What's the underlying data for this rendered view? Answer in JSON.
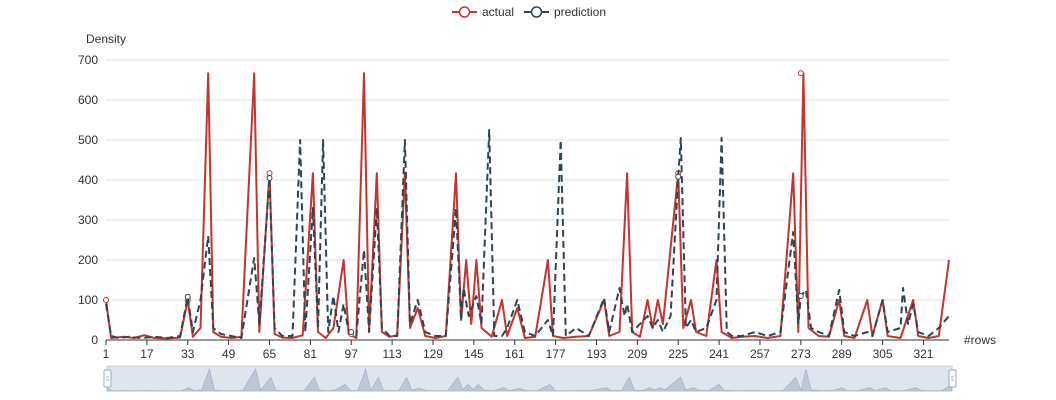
{
  "chart_data": {
    "type": "line",
    "title": "",
    "xlabel": "#rows",
    "ylabel": "Density",
    "ylim": [
      0,
      700
    ],
    "yticks": [
      0,
      100,
      200,
      300,
      400,
      500,
      600,
      700
    ],
    "xlim": [
      1,
      331
    ],
    "xticks": [
      1,
      17,
      33,
      49,
      65,
      81,
      97,
      113,
      129,
      145,
      161,
      177,
      193,
      209,
      225,
      241,
      257,
      273,
      289,
      305,
      321
    ],
    "grid": "horizontal",
    "legend": "top-center",
    "data_zoom": true,
    "series": [
      {
        "name": "actual",
        "color": "#c23531",
        "style": "solid",
        "markers": [
          [
            1,
            100
          ],
          [
            33,
            100
          ],
          [
            65,
            417
          ],
          [
            97,
            15
          ],
          [
            225,
            417
          ],
          [
            273,
            667
          ]
        ],
        "points": [
          [
            1,
            100
          ],
          [
            3,
            5
          ],
          [
            8,
            8
          ],
          [
            12,
            5
          ],
          [
            16,
            12
          ],
          [
            20,
            5
          ],
          [
            25,
            4
          ],
          [
            30,
            6
          ],
          [
            33,
            100
          ],
          [
            35,
            8
          ],
          [
            38,
            30
          ],
          [
            41,
            667
          ],
          [
            43,
            20
          ],
          [
            46,
            8
          ],
          [
            50,
            5
          ],
          [
            54,
            8
          ],
          [
            59,
            667
          ],
          [
            61,
            20
          ],
          [
            65,
            417
          ],
          [
            67,
            15
          ],
          [
            70,
            6
          ],
          [
            74,
            5
          ],
          [
            78,
            12
          ],
          [
            82,
            417
          ],
          [
            84,
            20
          ],
          [
            87,
            5
          ],
          [
            90,
            30
          ],
          [
            94,
            200
          ],
          [
            96,
            15
          ],
          [
            99,
            5
          ],
          [
            102,
            667
          ],
          [
            104,
            20
          ],
          [
            107,
            417
          ],
          [
            109,
            20
          ],
          [
            112,
            8
          ],
          [
            115,
            12
          ],
          [
            118,
            417
          ],
          [
            120,
            30
          ],
          [
            123,
            80
          ],
          [
            126,
            10
          ],
          [
            130,
            5
          ],
          [
            134,
            10
          ],
          [
            138,
            417
          ],
          [
            140,
            50
          ],
          [
            142,
            200
          ],
          [
            144,
            40
          ],
          [
            146,
            200
          ],
          [
            148,
            30
          ],
          [
            152,
            8
          ],
          [
            156,
            100
          ],
          [
            158,
            10
          ],
          [
            162,
            80
          ],
          [
            165,
            5
          ],
          [
            169,
            8
          ],
          [
            174,
            200
          ],
          [
            176,
            10
          ],
          [
            180,
            5
          ],
          [
            185,
            8
          ],
          [
            190,
            10
          ],
          [
            196,
            100
          ],
          [
            198,
            10
          ],
          [
            202,
            20
          ],
          [
            205,
            417
          ],
          [
            207,
            20
          ],
          [
            210,
            8
          ],
          [
            213,
            100
          ],
          [
            215,
            30
          ],
          [
            217,
            100
          ],
          [
            219,
            40
          ],
          [
            225,
            417
          ],
          [
            227,
            30
          ],
          [
            230,
            100
          ],
          [
            232,
            20
          ],
          [
            236,
            10
          ],
          [
            240,
            200
          ],
          [
            242,
            20
          ],
          [
            246,
            5
          ],
          [
            250,
            8
          ],
          [
            255,
            10
          ],
          [
            260,
            5
          ],
          [
            265,
            10
          ],
          [
            270,
            417
          ],
          [
            272,
            20
          ],
          [
            274,
            667
          ],
          [
            276,
            30
          ],
          [
            280,
            10
          ],
          [
            284,
            8
          ],
          [
            288,
            100
          ],
          [
            290,
            10
          ],
          [
            294,
            5
          ],
          [
            299,
            100
          ],
          [
            301,
            10
          ],
          [
            305,
            100
          ],
          [
            307,
            10
          ],
          [
            312,
            5
          ],
          [
            317,
            100
          ],
          [
            319,
            10
          ],
          [
            323,
            5
          ],
          [
            327,
            10
          ],
          [
            331,
            200
          ]
        ]
      },
      {
        "name": "prediction",
        "color": "#2f4554",
        "style": "dashed",
        "markers": [
          [
            33,
            108
          ],
          [
            65,
            405
          ],
          [
            97,
            20
          ],
          [
            225,
            408
          ],
          [
            273,
            110
          ]
        ],
        "points": [
          [
            1,
            90
          ],
          [
            3,
            10
          ],
          [
            6,
            5
          ],
          [
            10,
            8
          ],
          [
            15,
            5
          ],
          [
            20,
            8
          ],
          [
            25,
            5
          ],
          [
            30,
            10
          ],
          [
            33,
            108
          ],
          [
            35,
            20
          ],
          [
            38,
            100
          ],
          [
            41,
            260
          ],
          [
            43,
            30
          ],
          [
            46,
            15
          ],
          [
            50,
            10
          ],
          [
            54,
            5
          ],
          [
            59,
            205
          ],
          [
            61,
            40
          ],
          [
            65,
            405
          ],
          [
            67,
            30
          ],
          [
            70,
            10
          ],
          [
            74,
            10
          ],
          [
            77,
            500
          ],
          [
            79,
            20
          ],
          [
            82,
            330
          ],
          [
            84,
            30
          ],
          [
            86,
            500
          ],
          [
            88,
            20
          ],
          [
            90,
            110
          ],
          [
            92,
            20
          ],
          [
            94,
            90
          ],
          [
            96,
            20
          ],
          [
            99,
            10
          ],
          [
            102,
            225
          ],
          [
            104,
            20
          ],
          [
            107,
            330
          ],
          [
            109,
            30
          ],
          [
            112,
            10
          ],
          [
            115,
            10
          ],
          [
            118,
            500
          ],
          [
            120,
            40
          ],
          [
            123,
            100
          ],
          [
            126,
            20
          ],
          [
            130,
            10
          ],
          [
            134,
            10
          ],
          [
            138,
            330
          ],
          [
            140,
            50
          ],
          [
            141,
            130
          ],
          [
            143,
            60
          ],
          [
            146,
            110
          ],
          [
            148,
            40
          ],
          [
            151,
            525
          ],
          [
            153,
            10
          ],
          [
            156,
            10
          ],
          [
            158,
            30
          ],
          [
            162,
            100
          ],
          [
            165,
            20
          ],
          [
            169,
            10
          ],
          [
            174,
            50
          ],
          [
            176,
            10
          ],
          [
            179,
            500
          ],
          [
            181,
            10
          ],
          [
            185,
            30
          ],
          [
            190,
            10
          ],
          [
            196,
            105
          ],
          [
            198,
            20
          ],
          [
            202,
            130
          ],
          [
            204,
            60
          ],
          [
            205,
            90
          ],
          [
            207,
            20
          ],
          [
            210,
            40
          ],
          [
            213,
            60
          ],
          [
            215,
            30
          ],
          [
            217,
            50
          ],
          [
            219,
            20
          ],
          [
            222,
            60
          ],
          [
            225,
            408
          ],
          [
            226,
            505
          ],
          [
            228,
            30
          ],
          [
            230,
            50
          ],
          [
            232,
            20
          ],
          [
            236,
            30
          ],
          [
            240,
            100
          ],
          [
            242,
            505
          ],
          [
            244,
            20
          ],
          [
            246,
            10
          ],
          [
            250,
            10
          ],
          [
            255,
            20
          ],
          [
            260,
            10
          ],
          [
            265,
            20
          ],
          [
            270,
            270
          ],
          [
            272,
            40
          ],
          [
            273,
            110
          ],
          [
            275,
            125
          ],
          [
            277,
            30
          ],
          [
            280,
            20
          ],
          [
            284,
            10
          ],
          [
            288,
            125
          ],
          [
            290,
            20
          ],
          [
            294,
            10
          ],
          [
            299,
            20
          ],
          [
            301,
            10
          ],
          [
            305,
            100
          ],
          [
            307,
            20
          ],
          [
            312,
            30
          ],
          [
            313,
            130
          ],
          [
            315,
            40
          ],
          [
            317,
            90
          ],
          [
            319,
            20
          ],
          [
            323,
            10
          ],
          [
            327,
            30
          ],
          [
            331,
            60
          ]
        ]
      }
    ]
  }
}
